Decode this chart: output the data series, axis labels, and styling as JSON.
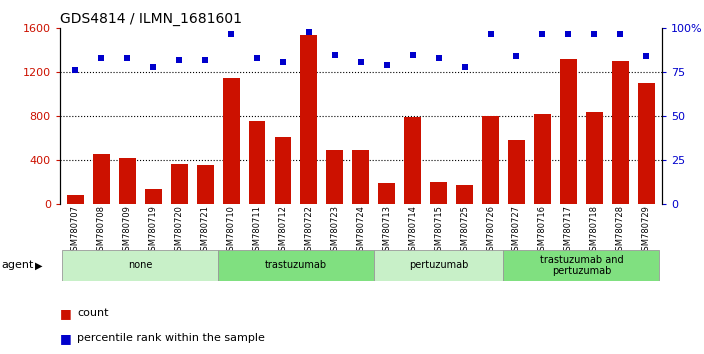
{
  "title": "GDS4814 / ILMN_1681601",
  "samples": [
    "GSM780707",
    "GSM780708",
    "GSM780709",
    "GSM780719",
    "GSM780720",
    "GSM780721",
    "GSM780710",
    "GSM780711",
    "GSM780712",
    "GSM780722",
    "GSM780723",
    "GSM780724",
    "GSM780713",
    "GSM780714",
    "GSM780715",
    "GSM780725",
    "GSM780726",
    "GSM780727",
    "GSM780716",
    "GSM780717",
    "GSM780718",
    "GSM780728",
    "GSM780729"
  ],
  "counts": [
    80,
    450,
    420,
    130,
    360,
    355,
    1150,
    750,
    610,
    1540,
    490,
    490,
    190,
    790,
    195,
    170,
    800,
    580,
    820,
    1320,
    840,
    1300,
    1100
  ],
  "percentile": [
    76,
    83,
    83,
    78,
    82,
    82,
    97,
    83,
    81,
    98,
    85,
    81,
    79,
    85,
    83,
    78,
    97,
    84,
    97,
    97,
    97,
    97,
    84
  ],
  "groups": [
    {
      "label": "none",
      "start": 0,
      "end": 6,
      "color": "#c8f0c8"
    },
    {
      "label": "trastuzumab",
      "start": 6,
      "end": 12,
      "color": "#80e080"
    },
    {
      "label": "pertuzumab",
      "start": 12,
      "end": 17,
      "color": "#c8f0c8"
    },
    {
      "label": "trastuzumab and\npertuzumab",
      "start": 17,
      "end": 23,
      "color": "#80e080"
    }
  ],
  "bar_color": "#cc1100",
  "dot_color": "#0000cc",
  "ylim_left": [
    0,
    1600
  ],
  "ylim_right": [
    0,
    100
  ],
  "yticks_left": [
    0,
    400,
    800,
    1200,
    1600
  ],
  "yticks_right": [
    0,
    25,
    50,
    75,
    100
  ],
  "hgrid_vals": [
    400,
    800,
    1200
  ],
  "background_color": "#ffffff",
  "agent_label": "agent"
}
